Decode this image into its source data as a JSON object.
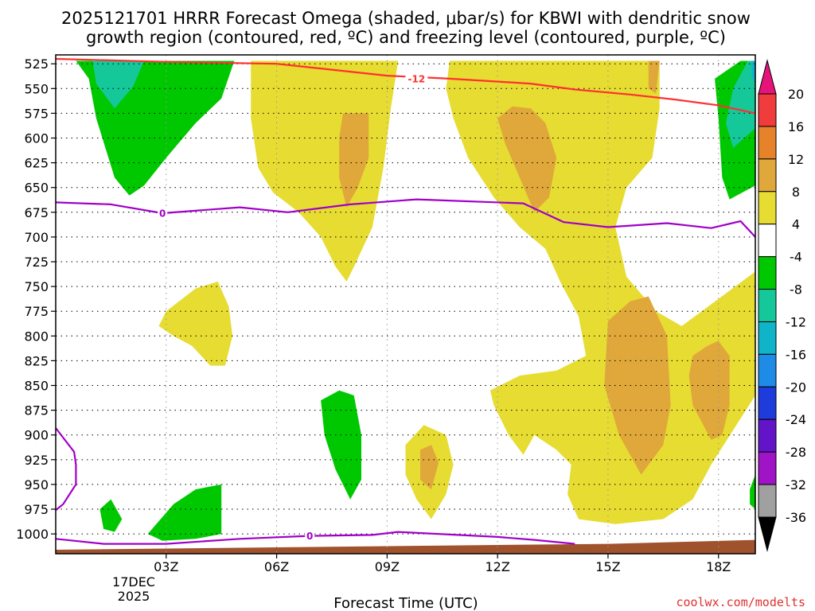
{
  "chart_data": {
    "type": "time-height cross section (filled contour)",
    "title_line1": "2025121701 HRRR Forecast Omega (shaded, μbar/s) for KBWI with dendritic snow",
    "title_line2": "growth region (contoured, red, ºC) and freezing level (contoured, purple, ºC)",
    "xlabel": "Forecast Time (UTC)",
    "date_label": [
      "17DEC",
      "2025"
    ],
    "credit": "coolwx.com/modelts",
    "x_hours": [
      0,
      19
    ],
    "x_ticks": [
      {
        "hour": 3,
        "label": "03Z"
      },
      {
        "hour": 6,
        "label": "06Z"
      },
      {
        "hour": 9,
        "label": "09Z"
      },
      {
        "hour": 12,
        "label": "12Z"
      },
      {
        "hour": 15,
        "label": "15Z"
      },
      {
        "hour": 18,
        "label": "18Z"
      }
    ],
    "y_axis": {
      "unit": "hPa",
      "range": [
        515,
        1020
      ],
      "ticks": [
        "525",
        "550",
        "575",
        "600",
        "625",
        "650",
        "675",
        "700",
        "725",
        "750",
        "775",
        "800",
        "825",
        "850",
        "875",
        "900",
        "925",
        "950",
        "975",
        "1000"
      ]
    },
    "colorbar": {
      "labels": [
        "20",
        "16",
        "12",
        "8",
        "4",
        "-4",
        "-8",
        "-12",
        "-16",
        "-20",
        "-24",
        "-28",
        "-32",
        "-36"
      ],
      "levels": [
        {
          "min": 16,
          "max": 20,
          "color": "#f03c3c"
        },
        {
          "min": 12,
          "max": 16,
          "color": "#e6822a"
        },
        {
          "min": 8,
          "max": 12,
          "color": "#e0a73a"
        },
        {
          "min": 4,
          "max": 8,
          "color": "#e6dc32"
        },
        {
          "min": -4,
          "max": 4,
          "color": "#ffffff"
        },
        {
          "min": -8,
          "max": -4,
          "color": "#00c800"
        },
        {
          "min": -12,
          "max": -8,
          "color": "#14c89a"
        },
        {
          "min": -16,
          "max": -12,
          "color": "#10b4c8"
        },
        {
          "min": -20,
          "max": -16,
          "color": "#1e8ce6"
        },
        {
          "min": -24,
          "max": -20,
          "color": "#1e3cdc"
        },
        {
          "min": -28,
          "max": -24,
          "color": "#6414c8"
        },
        {
          "min": -32,
          "max": -28,
          "color": "#a014c8"
        },
        {
          "min": -36,
          "max": -32,
          "color": "#a0a0a0"
        }
      ],
      "above_color": "#e6147a",
      "below_color": "#000000"
    },
    "shaded_regions": [
      {
        "level": "-8 to -4",
        "color": "#00c800",
        "points": [
          [
            0.55,
            522
          ],
          [
            4.85,
            522
          ],
          [
            4.5,
            560
          ],
          [
            3.8,
            585
          ],
          [
            3.0,
            620
          ],
          [
            2.4,
            648
          ],
          [
            2.0,
            658
          ],
          [
            1.6,
            640
          ],
          [
            1.1,
            580
          ],
          [
            0.9,
            540
          ]
        ]
      },
      {
        "level": "-12 to -8",
        "color": "#14c89a",
        "points": [
          [
            1.0,
            522
          ],
          [
            2.4,
            522
          ],
          [
            2.1,
            548
          ],
          [
            1.6,
            570
          ],
          [
            1.1,
            545
          ]
        ]
      },
      {
        "level": "4 to 8",
        "color": "#e6dc32",
        "points": [
          [
            5.3,
            522
          ],
          [
            9.3,
            522
          ],
          [
            9.1,
            570
          ],
          [
            8.9,
            630
          ],
          [
            8.6,
            690
          ],
          [
            8.1,
            730
          ],
          [
            7.9,
            745
          ],
          [
            7.6,
            730
          ],
          [
            7.2,
            700
          ],
          [
            6.6,
            675
          ],
          [
            5.9,
            655
          ],
          [
            5.5,
            630
          ],
          [
            5.3,
            580
          ]
        ]
      },
      {
        "level": "8 to 12",
        "color": "#e0a73a",
        "points": [
          [
            7.8,
            575
          ],
          [
            8.5,
            575
          ],
          [
            8.5,
            620
          ],
          [
            8.2,
            650
          ],
          [
            7.9,
            670
          ],
          [
            7.7,
            640
          ],
          [
            7.7,
            600
          ]
        ]
      },
      {
        "level": "4 to 8",
        "color": "#e6dc32",
        "points": [
          [
            10.7,
            522
          ],
          [
            15.3,
            522
          ],
          [
            16.4,
            522
          ],
          [
            16.4,
            570
          ],
          [
            16.2,
            620
          ],
          [
            15.5,
            650
          ],
          [
            15.2,
            690
          ],
          [
            15.5,
            740
          ],
          [
            16.3,
            775
          ],
          [
            17.0,
            790
          ],
          [
            19,
            735
          ],
          [
            19,
            860
          ],
          [
            17.8,
            930
          ],
          [
            17.3,
            965
          ],
          [
            16.5,
            985
          ],
          [
            15.2,
            990
          ],
          [
            14.2,
            985
          ],
          [
            13.9,
            960
          ],
          [
            14.0,
            930
          ],
          [
            13.6,
            915
          ],
          [
            13.0,
            900
          ],
          [
            12.7,
            920
          ],
          [
            12.3,
            900
          ],
          [
            11.9,
            870
          ],
          [
            11.8,
            855
          ],
          [
            12.6,
            840
          ],
          [
            13.6,
            835
          ],
          [
            14.4,
            820
          ],
          [
            14.2,
            780
          ],
          [
            13.7,
            745
          ],
          [
            13.3,
            712
          ],
          [
            12.6,
            690
          ],
          [
            11.9,
            660
          ],
          [
            11.2,
            620
          ],
          [
            10.8,
            580
          ],
          [
            10.6,
            550
          ]
        ]
      },
      {
        "level": "8 to 12",
        "color": "#e0a73a",
        "points": [
          [
            12.0,
            580
          ],
          [
            12.4,
            568
          ],
          [
            12.9,
            570
          ],
          [
            13.3,
            585
          ],
          [
            13.6,
            620
          ],
          [
            13.4,
            660
          ],
          [
            13.0,
            675
          ],
          [
            12.6,
            640
          ],
          [
            12.2,
            605
          ]
        ]
      },
      {
        "level": "8 to 12",
        "color": "#e0a73a",
        "points": [
          [
            15.0,
            785
          ],
          [
            15.6,
            765
          ],
          [
            16.1,
            760
          ],
          [
            16.6,
            800
          ],
          [
            16.7,
            870
          ],
          [
            16.5,
            910
          ],
          [
            15.9,
            940
          ],
          [
            15.3,
            900
          ],
          [
            14.9,
            850
          ]
        ]
      },
      {
        "level": "8 to 12",
        "color": "#e0a73a",
        "points": [
          [
            17.3,
            820
          ],
          [
            17.7,
            810
          ],
          [
            18.0,
            805
          ],
          [
            18.3,
            820
          ],
          [
            18.3,
            870
          ],
          [
            18.1,
            900
          ],
          [
            17.8,
            905
          ],
          [
            17.3,
            870
          ],
          [
            17.2,
            840
          ]
        ]
      },
      {
        "level": "8 to 12",
        "color": "#e0a73a",
        "points": [
          [
            16.1,
            522
          ],
          [
            16.4,
            522
          ],
          [
            16.3,
            555
          ],
          [
            16.1,
            550
          ]
        ]
      },
      {
        "level": "-8 to -4",
        "color": "#00c800",
        "points": [
          [
            18.6,
            522
          ],
          [
            19,
            522
          ],
          [
            19,
            648
          ],
          [
            18.3,
            662
          ],
          [
            18.1,
            640
          ],
          [
            18.0,
            580
          ],
          [
            17.9,
            540
          ]
        ]
      },
      {
        "level": "-12 to -8",
        "color": "#14c89a",
        "points": [
          [
            18.8,
            522
          ],
          [
            19,
            522
          ],
          [
            19,
            590
          ],
          [
            18.4,
            610
          ],
          [
            18.2,
            585
          ],
          [
            18.4,
            550
          ]
        ]
      },
      {
        "level": "-16 to -12",
        "color": "#10b4c8",
        "points": [
          [
            18.9,
            522
          ],
          [
            19,
            522
          ],
          [
            19,
            545
          ],
          [
            18.9,
            538
          ]
        ]
      },
      {
        "level": "4 to 8",
        "color": "#e6dc32",
        "points": [
          [
            3.0,
            775
          ],
          [
            3.8,
            752
          ],
          [
            4.4,
            745
          ],
          [
            4.7,
            770
          ],
          [
            4.8,
            800
          ],
          [
            4.6,
            830
          ],
          [
            4.2,
            830
          ],
          [
            3.7,
            810
          ],
          [
            3.2,
            800
          ],
          [
            2.8,
            790
          ]
        ]
      },
      {
        "level": "-8 to -4",
        "color": "#00c800",
        "points": [
          [
            7.2,
            865
          ],
          [
            7.7,
            855
          ],
          [
            8.1,
            860
          ],
          [
            8.3,
            900
          ],
          [
            8.3,
            945
          ],
          [
            8.0,
            965
          ],
          [
            7.6,
            935
          ],
          [
            7.3,
            900
          ]
        ]
      },
      {
        "level": "4 to 8",
        "color": "#e6dc32",
        "points": [
          [
            9.5,
            910
          ],
          [
            10.0,
            890
          ],
          [
            10.6,
            900
          ],
          [
            10.8,
            930
          ],
          [
            10.6,
            960
          ],
          [
            10.2,
            985
          ],
          [
            9.8,
            965
          ],
          [
            9.5,
            940
          ]
        ]
      },
      {
        "level": "8 to 12",
        "color": "#e0a73a",
        "points": [
          [
            9.9,
            915
          ],
          [
            10.2,
            910
          ],
          [
            10.4,
            928
          ],
          [
            10.2,
            955
          ],
          [
            9.9,
            945
          ]
        ]
      },
      {
        "level": "-8 to -4",
        "color": "#00c800",
        "points": [
          [
            1.2,
            975
          ],
          [
            1.5,
            965
          ],
          [
            1.8,
            985
          ],
          [
            1.6,
            998
          ],
          [
            1.3,
            995
          ]
        ]
      },
      {
        "level": "-8 to -4",
        "color": "#00c800",
        "points": [
          [
            2.5,
            1000
          ],
          [
            3.2,
            970
          ],
          [
            3.8,
            955
          ],
          [
            4.5,
            950
          ],
          [
            4.5,
            1000
          ],
          [
            3.8,
            1005
          ],
          [
            2.9,
            1007
          ]
        ]
      },
      {
        "level": "-8 to -4",
        "color": "#00c800",
        "points": [
          [
            19,
            940
          ],
          [
            18.85,
            955
          ],
          [
            18.85,
            970
          ],
          [
            19,
            975
          ]
        ]
      }
    ],
    "terrain": {
      "color": "#a0522d",
      "points": [
        [
          0,
          1016
        ],
        [
          10,
          1012
        ],
        [
          15,
          1010
        ],
        [
          19,
          1006
        ],
        [
          19,
          1020
        ],
        [
          0,
          1020
        ]
      ]
    },
    "contours": [
      {
        "name": "dendritic growth region -12 C",
        "color": "#ff3030",
        "label": "-12",
        "label_at": [
          9.8,
          540
        ],
        "points": [
          [
            0,
            520
          ],
          [
            3,
            523
          ],
          [
            6,
            525
          ],
          [
            9,
            537
          ],
          [
            10.7,
            540
          ],
          [
            12.9,
            545
          ],
          [
            14.1,
            551
          ],
          [
            15.6,
            556
          ],
          [
            16.8,
            561
          ],
          [
            18.0,
            567
          ],
          [
            19,
            575
          ]
        ]
      },
      {
        "name": "freezing level 0 C (upper)",
        "color": "#a000c8",
        "label": "0",
        "label_at": [
          2.9,
          676
        ],
        "points": [
          [
            0,
            665
          ],
          [
            1.5,
            667
          ],
          [
            2.9,
            676
          ],
          [
            5.0,
            670
          ],
          [
            6.3,
            675
          ],
          [
            8.0,
            667
          ],
          [
            9.8,
            662
          ],
          [
            12.7,
            666
          ],
          [
            13.8,
            685
          ],
          [
            15.0,
            690
          ],
          [
            16.6,
            686
          ],
          [
            17.8,
            691
          ],
          [
            18.6,
            684
          ],
          [
            19,
            700
          ]
        ]
      },
      {
        "name": "freezing level 0 C (lower)",
        "color": "#a000c8",
        "label": "0",
        "label_at": [
          6.9,
          1002
        ],
        "points": [
          [
            0,
            1005
          ],
          [
            1.3,
            1010
          ],
          [
            3.0,
            1010
          ],
          [
            5.0,
            1005
          ],
          [
            6.9,
            1002
          ],
          [
            8.6,
            1001
          ],
          [
            9.3,
            998
          ],
          [
            12.0,
            1003
          ],
          [
            13.0,
            1006
          ],
          [
            14.1,
            1010
          ]
        ]
      },
      {
        "name": "freezing level 0 C (left, near surface)",
        "color": "#a000c8",
        "label": "",
        "label_at": null,
        "points": [
          [
            0,
            893
          ],
          [
            0.5,
            917
          ],
          [
            0.55,
            930
          ],
          [
            0.55,
            950
          ],
          [
            0.2,
            970
          ],
          [
            0,
            976
          ]
        ]
      }
    ]
  }
}
